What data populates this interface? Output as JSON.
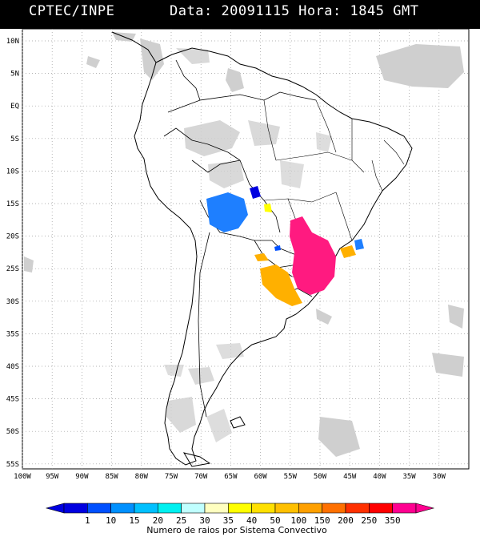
{
  "header": {
    "source": "CPTEC/INPE",
    "date_label": "Data:",
    "date_value": "20091115",
    "time_label": "Hora:",
    "time_value": "1845",
    "tz": "GMT"
  },
  "axes": {
    "lat_labels": [
      "10N",
      "5N",
      "EQ",
      "5S",
      "10S",
      "15S",
      "20S",
      "25S",
      "30S",
      "35S",
      "40S",
      "45S",
      "50S",
      "55S"
    ],
    "lon_labels": [
      "100W",
      "95W",
      "90W",
      "85W",
      "80W",
      "75W",
      "70W",
      "65W",
      "60W",
      "55W",
      "50W",
      "45W",
      "40W",
      "35W",
      "30W"
    ]
  },
  "colorbar": {
    "title": "Numero de raios por Sistema Convectivo",
    "levels": [
      "1",
      "10",
      "15",
      "20",
      "25",
      "30",
      "35",
      "40",
      "50",
      "100",
      "150",
      "200",
      "250",
      "350"
    ],
    "colors": [
      "#0000e0",
      "#0050ff",
      "#0090ff",
      "#00c0ff",
      "#00f0f0",
      "#c0ffff",
      "#ffffc0",
      "#ffff00",
      "#ffe000",
      "#ffc000",
      "#ffa000",
      "#ff7000",
      "#ff3000",
      "#ff0000",
      "#ff0090"
    ]
  },
  "map": {
    "background": "#ffffff",
    "cloud_color": "#c8c8c8",
    "grid_color": "#9a9a9a"
  }
}
